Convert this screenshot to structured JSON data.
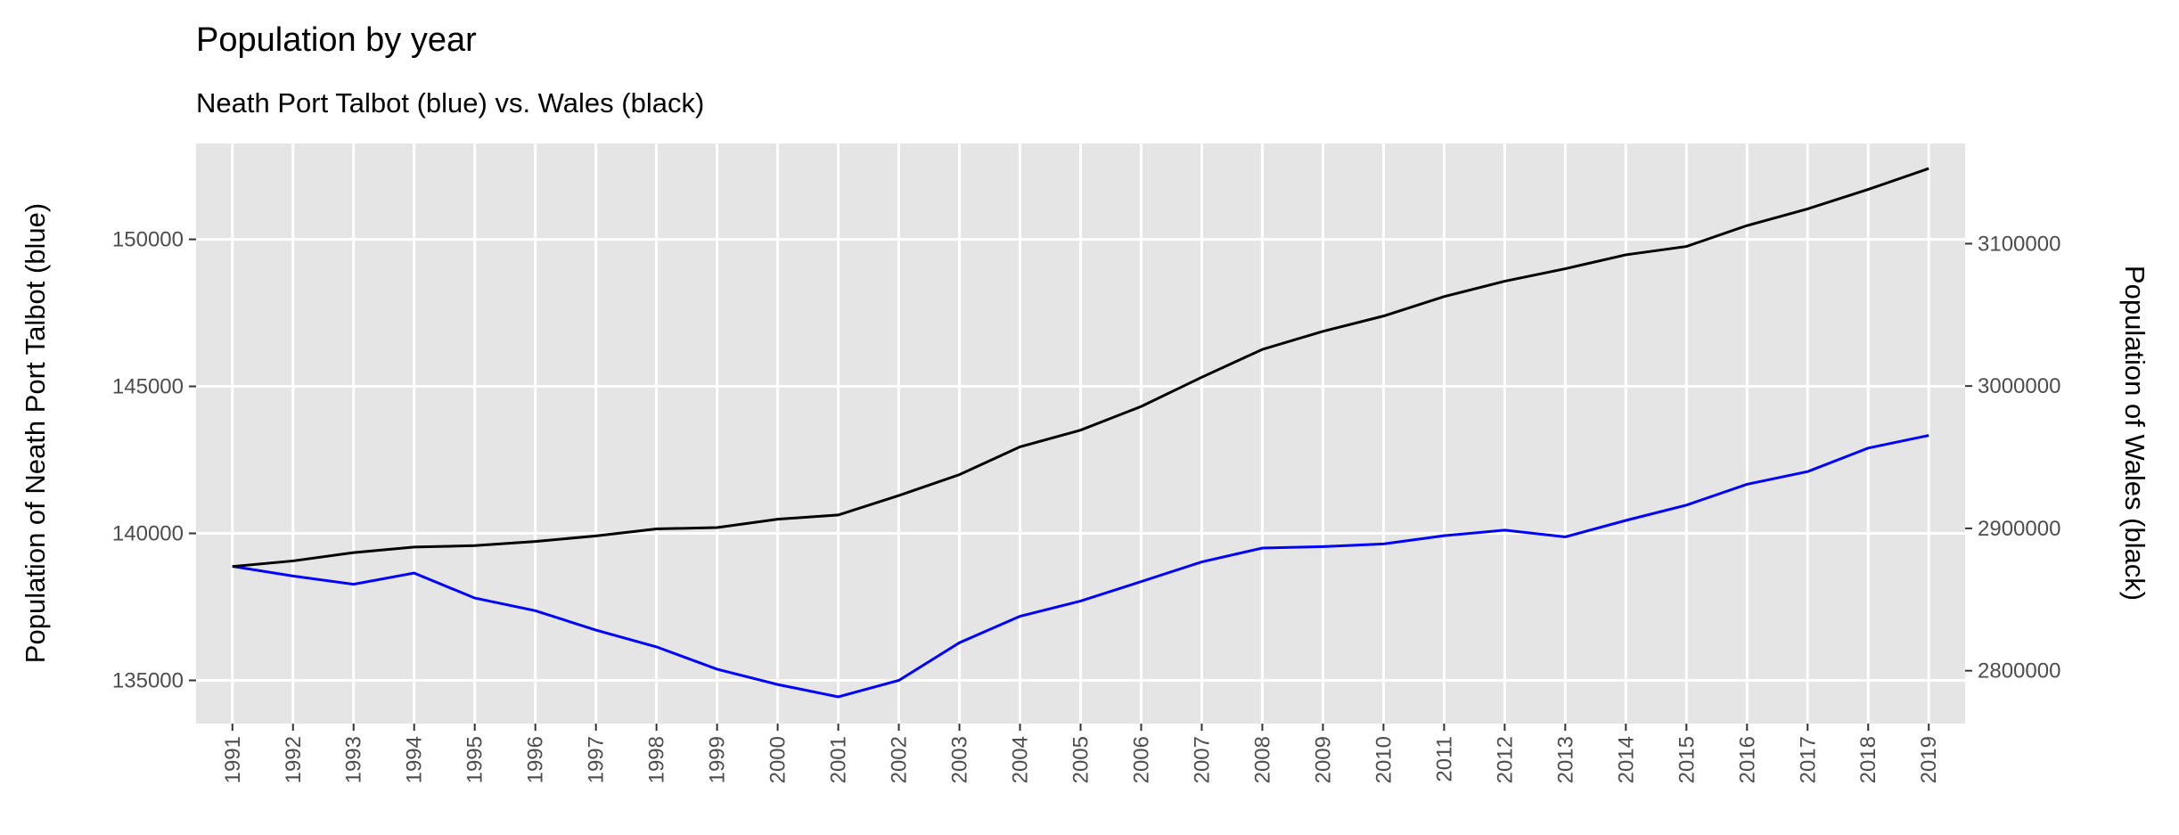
{
  "chart_data": {
    "type": "line",
    "title": "Population by year",
    "subtitle": "Neath Port Talbot (blue) vs. Wales (black)",
    "y_label": "Population of Neath Port Talbot  (blue)",
    "y2_label": "Population of Wales (black)",
    "x": [
      1991,
      1992,
      1993,
      1994,
      1995,
      1996,
      1997,
      1998,
      1999,
      2000,
      2001,
      2002,
      2003,
      2004,
      2005,
      2006,
      2007,
      2008,
      2009,
      2010,
      2011,
      2012,
      2013,
      2014,
      2015,
      2016,
      2017,
      2018,
      2019
    ],
    "series": [
      {
        "name": "Neath Port Talbot",
        "color": "#0000ff",
        "values": [
          138880,
          138550,
          138270,
          138650,
          137800,
          137370,
          136710,
          136140,
          135380,
          134860,
          134440,
          135000,
          136280,
          137180,
          137700,
          138360,
          139030,
          139500,
          139550,
          139640,
          139920,
          140110,
          139880,
          140440,
          140960,
          141670,
          142100,
          142900,
          143330
        ]
      },
      {
        "name": "Wales",
        "color": "#000000",
        "axis": "y2",
        "values": [
          2873220,
          2877130,
          2882990,
          2886900,
          2887880,
          2890810,
          2894720,
          2899610,
          2900590,
          2906450,
          2909380,
          2923070,
          2937730,
          2957280,
          2969010,
          2985630,
          3006160,
          3025710,
          3038420,
          3049170,
          3062850,
          3073610,
          3082400,
          3092180,
          3098040,
          3112710,
          3124440,
          3138120,
          3152790
        ]
      }
    ],
    "xlim": [
      1990.4,
      2019.6
    ],
    "xticks": [
      1991,
      1992,
      1993,
      1994,
      1995,
      1996,
      1997,
      1998,
      1999,
      2000,
      2001,
      2002,
      2003,
      2004,
      2005,
      2006,
      2007,
      2008,
      2009,
      2010,
      2011,
      2012,
      2013,
      2014,
      2015,
      2016,
      2017,
      2018,
      2019
    ],
    "ylim": [
      133530,
      153260
    ],
    "yticks": [
      135000,
      140000,
      145000,
      150000
    ],
    "y2lim": [
      2762850,
      3170380
    ],
    "y2ticks": [
      2800000,
      2900000,
      3000000,
      3100000
    ],
    "grid": true
  }
}
